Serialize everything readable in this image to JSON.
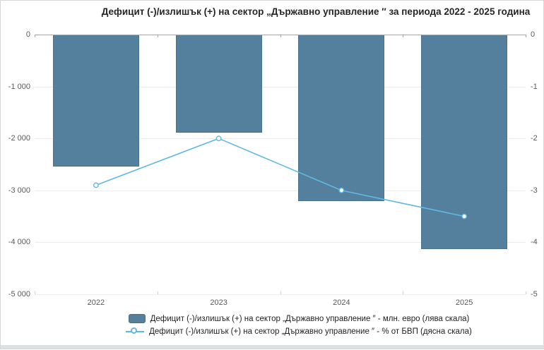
{
  "title": "Дефицит (-)/излишък (+) на сектор „Държавно управление ″ за периода 2022 - 2025 година",
  "chart_data": {
    "type": "bar+line",
    "categories": [
      "2022",
      "2023",
      "2024",
      "2025"
    ],
    "series": [
      {
        "name": "Дефицит (-)/излишък (+) на сектор „Държавно управление ″ - млн. евро (лява скала)",
        "type": "bar",
        "axis": "left",
        "values": [
          -2530,
          -1880,
          -3190,
          -4120
        ]
      },
      {
        "name": "Дефицит (-)/излишък (+) на сектор „Държавно управление ″ - % от БВП (дясна скала)",
        "type": "line",
        "axis": "right",
        "values": [
          -2.9,
          -2.0,
          -3.0,
          -3.5
        ]
      }
    ],
    "left_axis": {
      "max": 0,
      "min": -5000,
      "tick_labels": [
        "0",
        "-1 000",
        "-2 000",
        "-3 000",
        "-4 000",
        "-5 000"
      ]
    },
    "right_axis": {
      "max": 0,
      "min": -5,
      "tick_labels": [
        "0",
        "-1",
        "-2",
        "-3",
        "-4",
        "-5"
      ]
    },
    "grid": true,
    "legend_position": "bottom"
  },
  "legend": {
    "items": [
      {
        "label": "Дефицит (-)/излишък (+) на сектор „Държавно управление ″ - млн. евро (лява скала)",
        "marker": "bar-swatch"
      },
      {
        "label": "Дефицит (-)/излишък (+) на сектор „Държавно управление ″ - % от БВП (дясна скала)",
        "marker": "line-marker"
      }
    ]
  },
  "colors": {
    "bar_fill": "#54809E",
    "bar_border": "#4a7391",
    "line": "#5FB8E4",
    "marker_fill": "#ffffff",
    "grid": "#ececec",
    "zero_line": "#a6a6a6",
    "axis_text": "#595959",
    "title_text": "#262626",
    "legend_text": "#1f1f1f",
    "bottom_strip": "#dbe0e9"
  }
}
